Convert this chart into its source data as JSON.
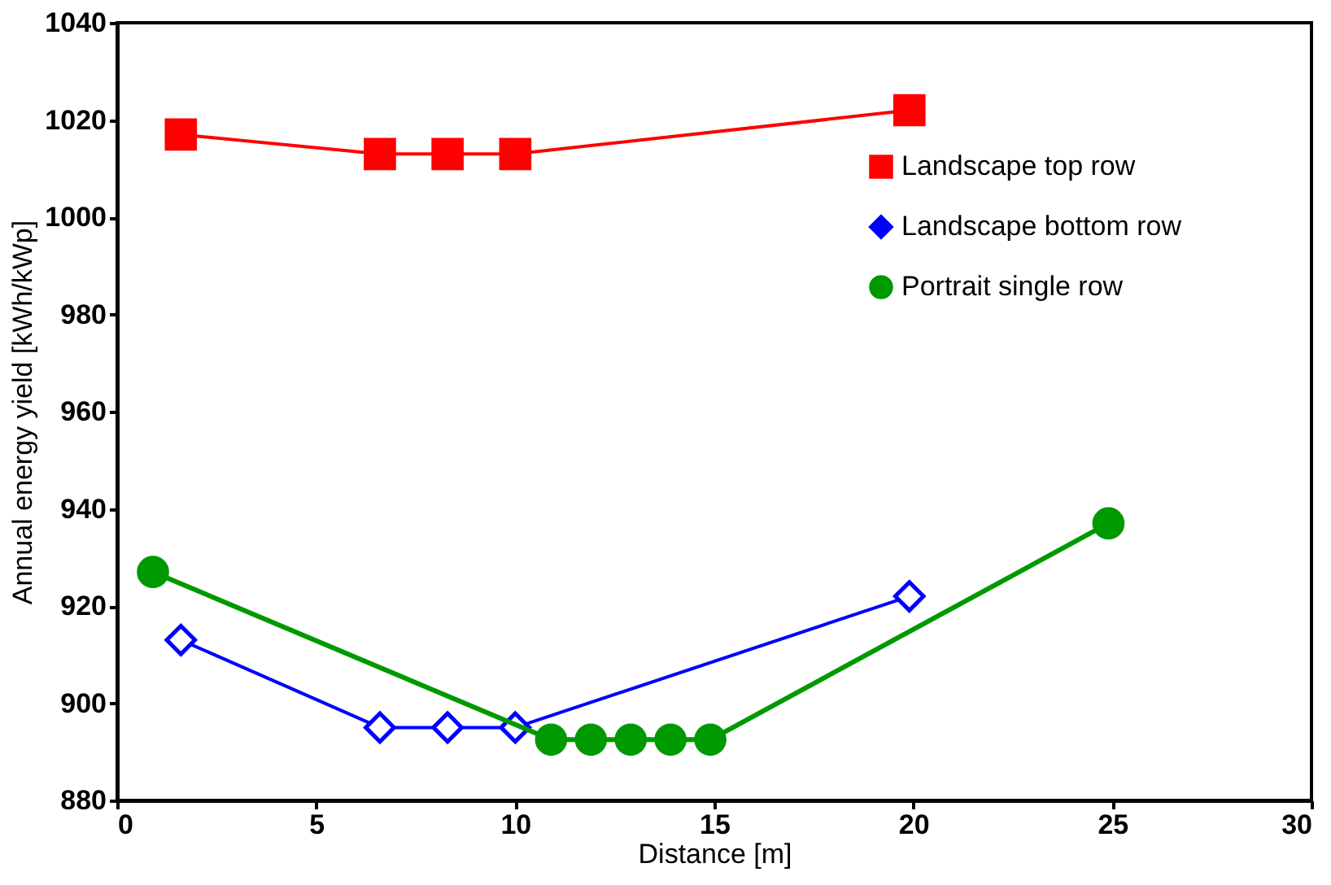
{
  "chart_data": {
    "type": "line",
    "xlabel": "Distance [m]",
    "ylabel": "Annual energy yield [kWh/kWp]",
    "xlim": [
      0,
      30
    ],
    "xticks": [
      0,
      5,
      10,
      15,
      20,
      25,
      30
    ],
    "ylim": [
      880,
      1040
    ],
    "yticks": [
      880,
      900,
      920,
      940,
      960,
      980,
      1000,
      1020,
      1040
    ],
    "grid": false,
    "legend": "top right",
    "line_style": "solid",
    "series": [
      {
        "name": "Landscape top row",
        "color": "#ff0000",
        "marker": "square",
        "x": [
          1.6,
          6.6,
          8.3,
          10,
          19.9
        ],
        "values": [
          1017,
          1013,
          1013,
          1013,
          1022
        ]
      },
      {
        "name": "Landscape bottom row",
        "color": "#0000ff",
        "marker": "diamond",
        "x": [
          1.6,
          6.6,
          8.3,
          10,
          19.9
        ],
        "values": [
          913,
          895,
          895,
          895,
          922
        ]
      },
      {
        "name": "Portrait single row",
        "color": "#009900",
        "marker": "circle",
        "x": [
          0.9,
          10.9,
          11.9,
          12.9,
          13.9,
          14.9,
          24.9
        ],
        "values": [
          927,
          892.5,
          892.5,
          892.5,
          892.5,
          892.5,
          937
        ]
      }
    ]
  }
}
